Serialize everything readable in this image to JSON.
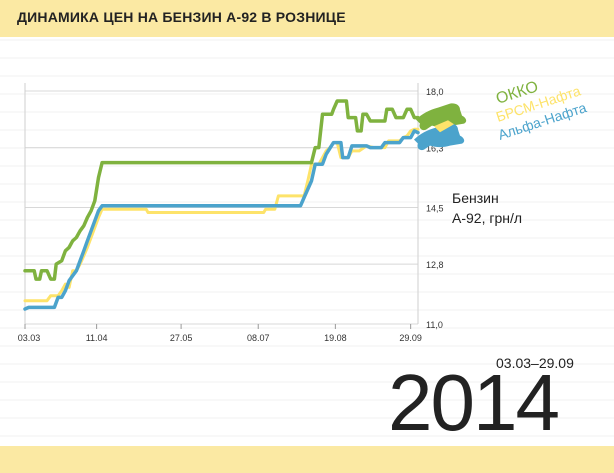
{
  "header": {
    "title": "ДИНАМИКА ЦЕН НА БЕНЗИН А-92 В РОЗНИЦЕ"
  },
  "unit_label": {
    "line1": "Бензин",
    "line2": "А-92, грн/л"
  },
  "period": {
    "range": "03.03–29.09",
    "year": "2014"
  },
  "colors": {
    "okko": "#7fb23f",
    "brsm": "#fde36a",
    "alfa": "#4ba3cc",
    "band": "#fbe9a3",
    "grid": "#d8d8d8"
  },
  "chart_data": {
    "type": "line",
    "xlabel": "",
    "ylabel": "",
    "ylim": [
      11.0,
      18.0
    ],
    "y_ticks": [
      "18,0",
      "16,3",
      "14,5",
      "12,8",
      "11,0"
    ],
    "y_tick_values": [
      18.0,
      16.3,
      14.5,
      12.8,
      11.0
    ],
    "x_ticks": [
      "03.03",
      "11.04",
      "27.05",
      "08.07",
      "19.08",
      "29.09"
    ],
    "x_tick_index": [
      0,
      39,
      85,
      127,
      169,
      210
    ],
    "series": [
      {
        "name": "ОККО",
        "color": "#7fb23f",
        "points": [
          [
            0,
            12.6
          ],
          [
            5,
            12.6
          ],
          [
            6,
            12.35
          ],
          [
            8,
            12.35
          ],
          [
            9,
            12.6
          ],
          [
            12,
            12.6
          ],
          [
            14,
            12.35
          ],
          [
            16,
            12.35
          ],
          [
            17,
            12.8
          ],
          [
            20,
            12.9
          ],
          [
            22,
            13.2
          ],
          [
            24,
            13.3
          ],
          [
            26,
            13.5
          ],
          [
            28,
            13.6
          ],
          [
            30,
            13.8
          ],
          [
            32,
            13.95
          ],
          [
            34,
            14.2
          ],
          [
            36,
            14.4
          ],
          [
            38,
            14.7
          ],
          [
            40,
            15.4
          ],
          [
            42,
            15.85
          ],
          [
            100,
            15.85
          ],
          [
            150,
            15.85
          ],
          [
            156,
            15.85
          ],
          [
            158,
            16.3
          ],
          [
            160,
            16.3
          ],
          [
            162,
            17.3
          ],
          [
            167,
            17.3
          ],
          [
            168,
            17.45
          ],
          [
            170,
            17.7
          ],
          [
            175,
            17.7
          ],
          [
            176,
            17.2
          ],
          [
            180,
            17.2
          ],
          [
            181,
            16.8
          ],
          [
            183,
            16.8
          ],
          [
            184,
            17.3
          ],
          [
            186,
            17.3
          ],
          [
            188,
            17.1
          ],
          [
            196,
            17.1
          ],
          [
            197,
            17.45
          ],
          [
            200,
            17.45
          ],
          [
            202,
            17.2
          ],
          [
            206,
            17.2
          ],
          [
            208,
            17.45
          ],
          [
            210,
            17.45
          ],
          [
            212,
            17.2
          ],
          [
            214,
            17.2
          ]
        ]
      },
      {
        "name": "БРСМ-Нафта",
        "color": "#fde36a",
        "points": [
          [
            0,
            11.7
          ],
          [
            10,
            11.7
          ],
          [
            12,
            11.7
          ],
          [
            14,
            11.85
          ],
          [
            16,
            11.85
          ],
          [
            18,
            11.85
          ],
          [
            20,
            12.0
          ],
          [
            22,
            12.2
          ],
          [
            24,
            12.1
          ],
          [
            26,
            12.6
          ],
          [
            28,
            12.6
          ],
          [
            30,
            12.8
          ],
          [
            32,
            13.05
          ],
          [
            34,
            13.3
          ],
          [
            36,
            13.6
          ],
          [
            38,
            13.9
          ],
          [
            40,
            14.2
          ],
          [
            42,
            14.45
          ],
          [
            66,
            14.45
          ],
          [
            67,
            14.35
          ],
          [
            130,
            14.35
          ],
          [
            131,
            14.45
          ],
          [
            136,
            14.45
          ],
          [
            138,
            14.85
          ],
          [
            150,
            14.85
          ],
          [
            152,
            14.85
          ],
          [
            154,
            15.3
          ],
          [
            156,
            15.8
          ],
          [
            160,
            15.8
          ],
          [
            162,
            16.0
          ],
          [
            164,
            16.2
          ],
          [
            166,
            16.3
          ],
          [
            168,
            16.45
          ],
          [
            170,
            16.45
          ],
          [
            172,
            16.0
          ],
          [
            176,
            16.0
          ],
          [
            178,
            16.2
          ],
          [
            180,
            16.2
          ],
          [
            182,
            16.2
          ],
          [
            186,
            16.35
          ],
          [
            190,
            16.3
          ],
          [
            196,
            16.3
          ],
          [
            198,
            16.5
          ],
          [
            204,
            16.5
          ],
          [
            206,
            16.6
          ],
          [
            208,
            16.65
          ],
          [
            210,
            16.8
          ],
          [
            212,
            16.85
          ],
          [
            214,
            16.85
          ]
        ]
      },
      {
        "name": "Альфа-Нафта",
        "color": "#4ba3cc",
        "points": [
          [
            0,
            11.45
          ],
          [
            2,
            11.5
          ],
          [
            10,
            11.5
          ],
          [
            14,
            11.5
          ],
          [
            16,
            11.5
          ],
          [
            18,
            11.8
          ],
          [
            20,
            11.8
          ],
          [
            22,
            12.0
          ],
          [
            24,
            12.3
          ],
          [
            26,
            12.45
          ],
          [
            28,
            12.6
          ],
          [
            30,
            12.9
          ],
          [
            32,
            13.2
          ],
          [
            34,
            13.5
          ],
          [
            36,
            13.8
          ],
          [
            38,
            14.1
          ],
          [
            40,
            14.4
          ],
          [
            42,
            14.55
          ],
          [
            100,
            14.55
          ],
          [
            150,
            14.55
          ],
          [
            152,
            14.8
          ],
          [
            156,
            15.3
          ],
          [
            158,
            15.8
          ],
          [
            162,
            15.8
          ],
          [
            164,
            16.1
          ],
          [
            168,
            16.45
          ],
          [
            172,
            16.45
          ],
          [
            173,
            16.0
          ],
          [
            176,
            16.0
          ],
          [
            178,
            16.35
          ],
          [
            182,
            16.35
          ],
          [
            186,
            16.35
          ],
          [
            188,
            16.3
          ],
          [
            194,
            16.3
          ],
          [
            196,
            16.45
          ],
          [
            204,
            16.45
          ],
          [
            206,
            16.6
          ],
          [
            210,
            16.6
          ],
          [
            212,
            16.8
          ],
          [
            214,
            16.75
          ]
        ]
      }
    ]
  }
}
